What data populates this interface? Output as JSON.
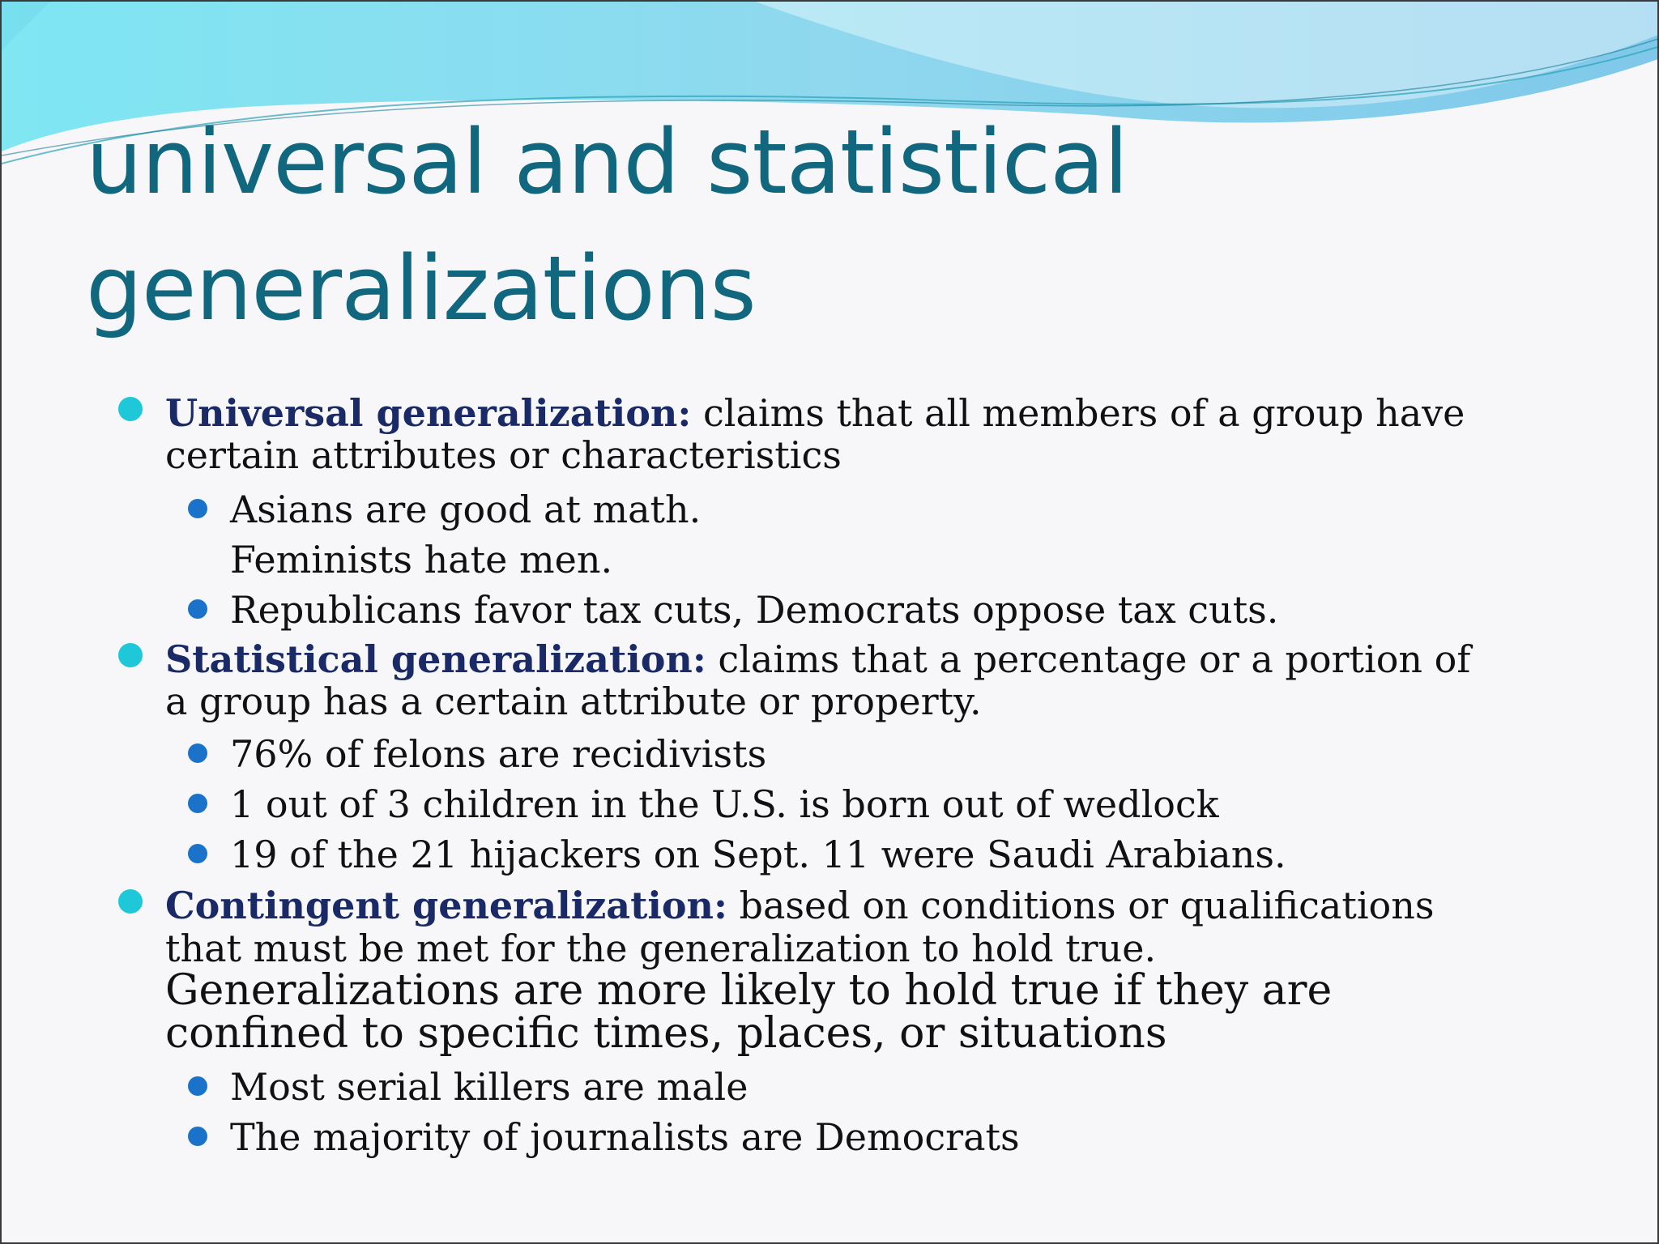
{
  "slide": {
    "title_line1": "universal and statistical",
    "title_line2": "generalizations",
    "colors": {
      "title": "#11687e",
      "term": "#1a2a66",
      "main_bullet": "#1fc8d8",
      "sub_bullet": "#1a73c9"
    },
    "items": [
      {
        "term": "Universal generalization:",
        "text": " claims that all members of a group have certain attributes or characteristics",
        "subitems": [
          "Asians are good at math.",
          "Feminists hate men.",
          "Republicans favor tax cuts, Democrats oppose tax cuts."
        ]
      },
      {
        "term": "Statistical generalization:",
        "text": " claims that a percentage or a portion of a group has a certain attribute or property.",
        "subitems": [
          "76% of felons are recidivists",
          "1 out of 3 children in the U.S. is born out of wedlock",
          "19 of the 21 hijackers on Sept. 11 were Saudi Arabians."
        ]
      },
      {
        "term": "Contingent generalization:",
        "text": " based on conditions or qualifications that must be met for the generalization to hold true.",
        "text_large": " Generalizations are more likely to hold true if they are confined to specific times, places, or situations",
        "subitems": [
          "Most serial killers are male",
          "The majority of journalists are Democrats"
        ]
      }
    ]
  }
}
